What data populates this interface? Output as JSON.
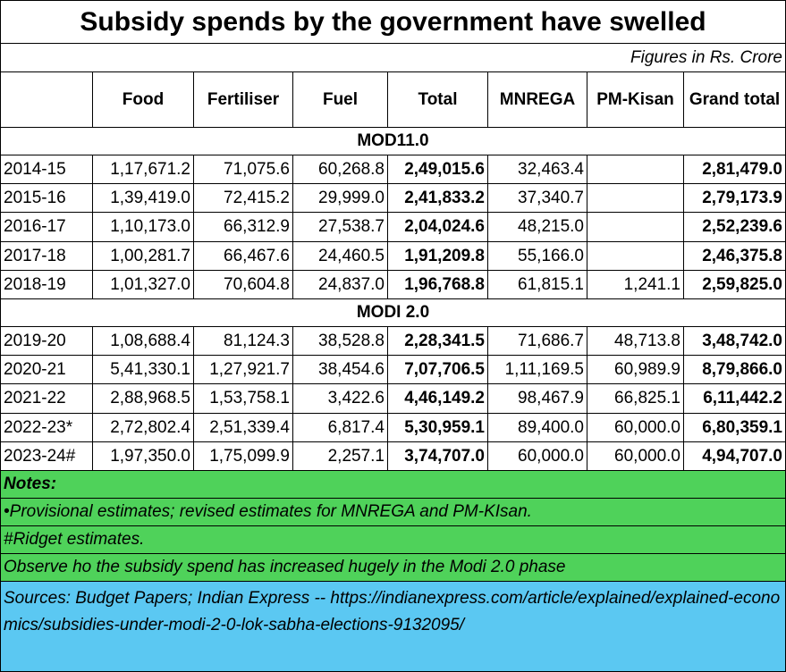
{
  "title": "Subsidy spends by the government have swelled",
  "units_note": "Figures in Rs. Crore",
  "headers": [
    "",
    "Food",
    "Fertiliser",
    "Fuel",
    "Total",
    "MNREGA",
    "PM-Kisan",
    "Grand total"
  ],
  "sections": [
    {
      "label": "MOD11.0",
      "rows": [
        [
          "2014-15",
          "1,17,671.2",
          "71,075.6",
          "60,268.8",
          "2,49,015.6",
          "32,463.4",
          "",
          "2,81,479.0"
        ],
        [
          "2015-16",
          "1,39,419.0",
          "72,415.2",
          "29,999.0",
          "2,41,833.2",
          "37,340.7",
          "",
          "2,79,173.9"
        ],
        [
          "2016-17",
          "1,10,173.0",
          "66,312.9",
          "27,538.7",
          "2,04,024.6",
          "48,215.0",
          "",
          "2,52,239.6"
        ],
        [
          "2017-18",
          "1,00,281.7",
          "66,467.6",
          "24,460.5",
          "1,91,209.8",
          "55,166.0",
          "",
          "2,46,375.8"
        ],
        [
          "2018-19",
          "1,01,327.0",
          "70,604.8",
          "24,837.0",
          "1,96,768.8",
          "61,815.1",
          "1,241.1",
          "2,59,825.0"
        ]
      ]
    },
    {
      "label": "MODI 2.0",
      "rows": [
        [
          "2019-20",
          "1,08,688.4",
          "81,124.3",
          "38,528.8",
          "2,28,341.5",
          "71,686.7",
          "48,713.8",
          "3,48,742.0"
        ],
        [
          "2020-21",
          "5,41,330.1",
          "1,27,921.7",
          "38,454.6",
          "7,07,706.5",
          "1,11,169.5",
          "60,989.9",
          "8,79,866.0"
        ],
        [
          "2021-22",
          "2,88,968.5",
          "1,53,758.1",
          "3,422.6",
          "4,46,149.2",
          "98,467.9",
          "66,825.1",
          "6,11,442.2"
        ],
        [
          "2022-23*",
          "2,72,802.4",
          "2,51,339.4",
          "6,817.4",
          "5,30,959.1",
          "89,400.0",
          "60,000.0",
          "6,80,359.1"
        ],
        [
          "2023-24#",
          "1,97,350.0",
          "1,75,099.9",
          "2,257.1",
          "3,74,707.0",
          "60,000.0",
          "60,000.0",
          "4,94,707.0"
        ]
      ]
    }
  ],
  "notes": [
    "Notes:",
    "•Provisional estimates;  revised estimates for MNREGA and PM-KIsan.",
    "#Ridget estimates.",
    "Observe ho the subsidy spend has increased hugely in the Modi 2.0 phase"
  ],
  "sources": "Sources: Budget Papers; Indian Express -- https://indianexpress.com/article/explained/explained-economics/subsidies-under-modi-2-0-lok-sabha-elections-9132095/",
  "colors": {
    "notes_bg": "#4fd25a",
    "sources_bg": "#5bc8f2",
    "grid": "#000000"
  }
}
